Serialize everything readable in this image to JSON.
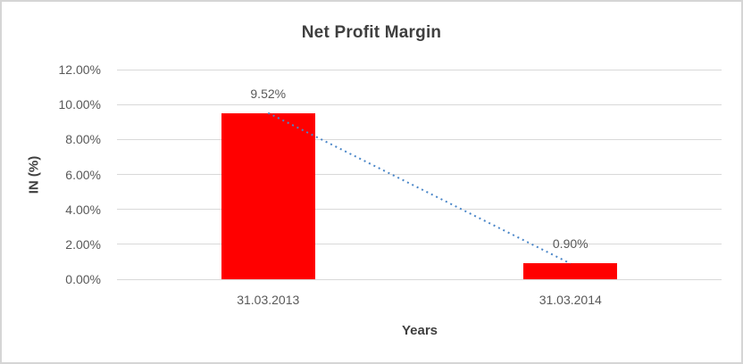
{
  "chart_data": {
    "type": "bar",
    "title": "Net Profit Margin",
    "xlabel": "Years",
    "ylabel": "IN (%)",
    "categories": [
      "31.03.2013",
      "31.03.2014"
    ],
    "values": [
      9.52,
      0.9
    ],
    "data_labels": [
      "9.52%",
      "0.90%"
    ],
    "ylim": [
      0,
      12
    ],
    "ytick_step": 2,
    "ytick_labels": [
      "0.00%",
      "2.00%",
      "4.00%",
      "6.00%",
      "8.00%",
      "10.00%",
      "12.00%"
    ],
    "grid": true,
    "legend": false,
    "bar_color": "#ff0000",
    "trendline": {
      "type": "linear",
      "style": "dotted",
      "color": "#4a86c8"
    }
  },
  "colors": {
    "title_text": "#3f3f3f",
    "axis_text": "#595959",
    "gridline": "#d9d9d9",
    "chart_border": "#d5d5d5",
    "background": "#ffffff"
  }
}
